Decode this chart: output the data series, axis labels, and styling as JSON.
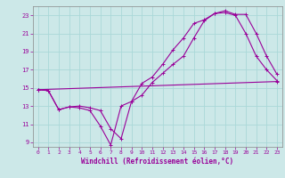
{
  "xlabel": "Windchill (Refroidissement éolien,°C)",
  "bg_color": "#cce8e8",
  "line_color": "#990099",
  "grid_color": "#aad8d8",
  "xlim": [
    -0.5,
    23.5
  ],
  "ylim": [
    8.5,
    24.0
  ],
  "xticks": [
    0,
    1,
    2,
    3,
    4,
    5,
    6,
    7,
    8,
    9,
    10,
    11,
    12,
    13,
    14,
    15,
    16,
    17,
    18,
    19,
    20,
    21,
    22,
    23
  ],
  "yticks": [
    9,
    11,
    13,
    15,
    17,
    19,
    21,
    23
  ],
  "line1_x": [
    0,
    1,
    2,
    3,
    4,
    5,
    6,
    7,
    8,
    9,
    10,
    11,
    12,
    13,
    14,
    15,
    16,
    17,
    18,
    19,
    20,
    21,
    22,
    23
  ],
  "line1_y": [
    14.8,
    14.7,
    12.6,
    12.9,
    12.8,
    12.5,
    10.8,
    8.7,
    13.0,
    13.5,
    14.2,
    15.6,
    16.6,
    17.6,
    18.5,
    20.5,
    22.4,
    23.2,
    23.3,
    23.0,
    21.0,
    18.5,
    17.0,
    15.8
  ],
  "line2_x": [
    0,
    1,
    2,
    3,
    4,
    5,
    6,
    7,
    8,
    9,
    10,
    11,
    12,
    13,
    14,
    15,
    16,
    17,
    18,
    19,
    20,
    21,
    22,
    23
  ],
  "line2_y": [
    14.8,
    14.7,
    12.6,
    12.9,
    13.0,
    12.8,
    12.5,
    10.5,
    9.4,
    13.5,
    15.5,
    16.2,
    17.6,
    19.2,
    20.5,
    22.1,
    22.5,
    23.2,
    23.5,
    23.1,
    23.1,
    21.0,
    18.5,
    16.5
  ],
  "line3_x": [
    0,
    23
  ],
  "line3_y": [
    14.8,
    15.7
  ]
}
